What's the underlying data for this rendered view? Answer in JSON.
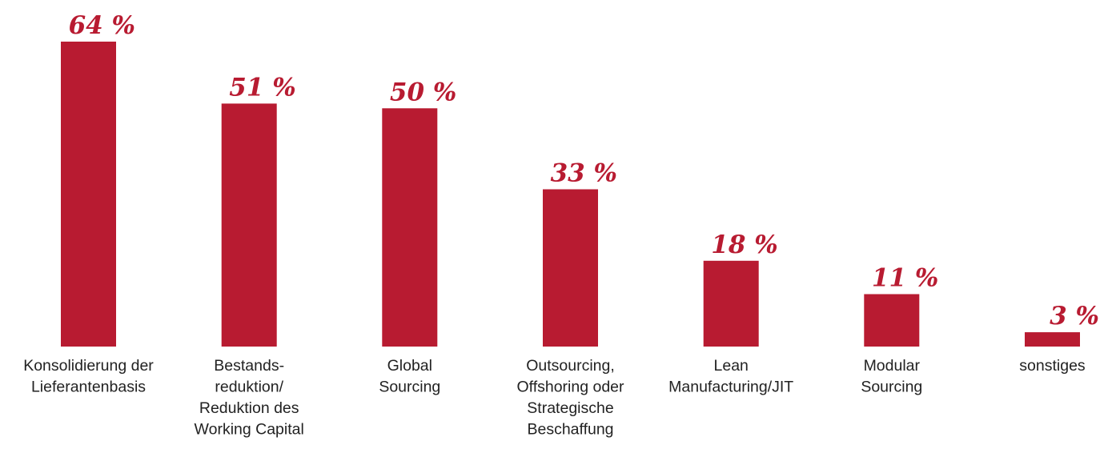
{
  "chart_data": {
    "type": "bar",
    "categories": [
      [
        "Konsolidierung der",
        "Lieferantenbasis"
      ],
      [
        "Bestands-",
        "reduktion/",
        "Reduktion des",
        "Working Capital"
      ],
      [
        "Global",
        "Sourcing"
      ],
      [
        "Outsourcing,",
        "Offshoring oder",
        "Strategische",
        "Beschaffung"
      ],
      [
        "Lean",
        "Manufacturing/JIT"
      ],
      [
        "Modular",
        "Sourcing"
      ],
      [
        "sonstiges"
      ]
    ],
    "values": [
      64,
      51,
      50,
      33,
      18,
      11,
      3
    ],
    "value_labels": [
      "64 %",
      "51 %",
      "50 %",
      "33 %",
      "18 %",
      "11 %",
      "3 %"
    ],
    "ylim": [
      0,
      64
    ],
    "grid": false,
    "bar_color": "#b81b31",
    "label_color": "#b81b31",
    "text_color": "#222222"
  }
}
